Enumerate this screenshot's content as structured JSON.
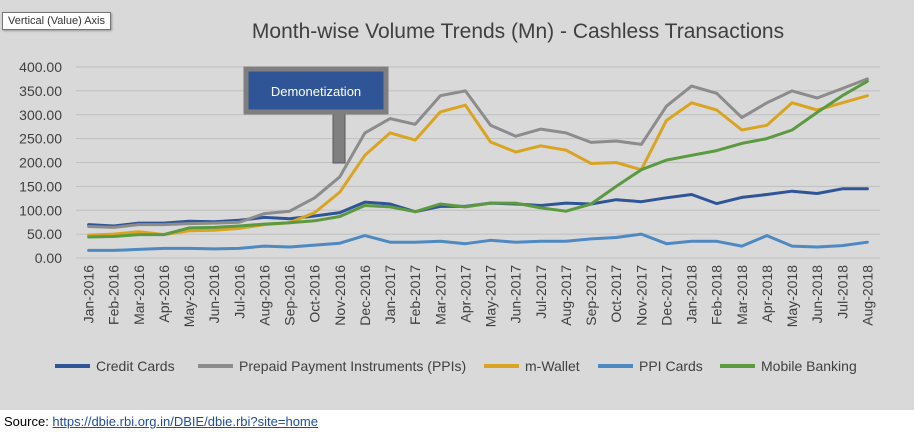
{
  "tooltip": "Vertical (Value) Axis",
  "source": {
    "label": "Source: ",
    "link": "https://dbie.rbi.org.in/DBIE/dbie.rbi?site=home"
  },
  "annotation": "Demonetization",
  "colors": {
    "background": "#d9d9d9",
    "gridline": "#bfbfbf",
    "annotation_fill": "#2f5597",
    "annotation_border": "#7f7f7f"
  },
  "chart_data": {
    "type": "line",
    "title": "Month-wise Volume Trends (Mn)  - Cashless Transactions",
    "xlabel": "",
    "ylabel": "",
    "ylim": [
      0,
      400
    ],
    "yticks": [
      "0.00",
      "50.00",
      "100.00",
      "150.00",
      "200.00",
      "250.00",
      "300.00",
      "350.00",
      "400.00"
    ],
    "grid": true,
    "legend_position": "bottom",
    "categories": [
      "Jan-2016",
      "Feb-2016",
      "Mar-2016",
      "Apr-2016",
      "May-2016",
      "Jun-2016",
      "Jul-2016",
      "Aug-2016",
      "Sep-2016",
      "Oct-2016",
      "Nov-2016",
      "Dec-2016",
      "Jan-2017",
      "Feb-2017",
      "Mar-2017",
      "Apr-2017",
      "May-2017",
      "Jun-2017",
      "Jul-2017",
      "Aug-2017",
      "Sep-2017",
      "Oct-2017",
      "Nov-2017",
      "Dec-2017",
      "Jan-2018",
      "Feb-2018",
      "Mar-2018",
      "Apr-2018",
      "May-2018",
      "Jun-2018",
      "Jul-2018",
      "Aug-2018"
    ],
    "series": [
      {
        "name": "Credit Cards",
        "color": "#2f5597",
        "values": [
          70,
          67,
          73,
          73,
          77,
          76,
          79,
          85,
          82,
          88,
          95,
          117,
          113,
          97,
          108,
          108,
          115,
          113,
          110,
          115,
          113,
          122,
          118,
          126,
          133,
          114,
          127,
          133,
          140,
          135,
          145,
          145
        ]
      },
      {
        "name": "Prepaid Payment Instruments (PPIs)",
        "color": "#8c8c8c",
        "values": [
          66,
          64,
          70,
          70,
          72,
          73,
          75,
          93,
          98,
          126,
          170,
          262,
          292,
          280,
          340,
          350,
          278,
          255,
          270,
          262,
          242,
          245,
          238,
          318,
          360,
          345,
          294,
          325,
          350,
          335,
          355,
          375
        ]
      },
      {
        "name": "m-Wallet",
        "color": "#d9a421",
        "values": [
          48,
          50,
          55,
          49,
          57,
          58,
          62,
          70,
          74,
          95,
          138,
          215,
          262,
          247,
          306,
          320,
          243,
          222,
          235,
          226,
          198,
          200,
          185,
          288,
          325,
          310,
          268,
          278,
          325,
          310,
          325,
          340
        ]
      },
      {
        "name": "PPI Cards",
        "color": "#4e89c2",
        "values": [
          16,
          16,
          18,
          20,
          20,
          19,
          20,
          25,
          23,
          27,
          31,
          47,
          33,
          33,
          35,
          30,
          37,
          33,
          35,
          35,
          40,
          43,
          50,
          30,
          35,
          35,
          25,
          47,
          25,
          23,
          26,
          33
        ]
      },
      {
        "name": "Mobile Banking",
        "color": "#5b9a40",
        "values": [
          44,
          45,
          49,
          49,
          63,
          64,
          67,
          71,
          74,
          78,
          87,
          110,
          107,
          97,
          113,
          107,
          115,
          115,
          105,
          98,
          113,
          150,
          185,
          205,
          215,
          225,
          240,
          250,
          268,
          305,
          340,
          370
        ]
      }
    ]
  }
}
